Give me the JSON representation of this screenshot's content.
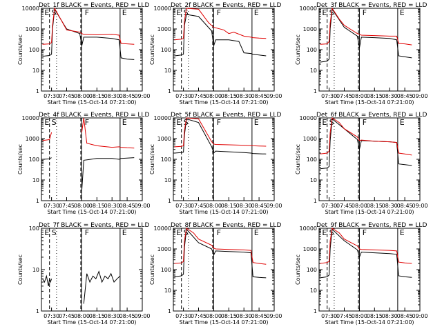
{
  "chart_data": [
    {
      "type": "line",
      "title": "Det_1f BLACK = Events, RED = LLD",
      "xlabel": "Start Time (15-Oct-14 07:21:00)",
      "ylabel": "Counts/sec",
      "yscale": "log",
      "ylim": [
        1,
        10000
      ],
      "xlim": [
        "07:20",
        "09:00"
      ],
      "x_ticks": [
        "07:30",
        "07:45",
        "08:00",
        "08:15",
        "08:30",
        "08:45",
        "09:00"
      ],
      "y_ticks": [
        "1",
        "10",
        "100",
        "1000",
        "10000"
      ],
      "segment_labels": [
        "E",
        "S",
        "F",
        "E"
      ],
      "series": [
        {
          "name": "Events",
          "color": "#000000",
          "x": [
            "07:21",
            "07:28",
            "07:30",
            "07:31",
            "07:33",
            "07:45",
            "07:58",
            "08:00",
            "08:02",
            "08:15",
            "08:30",
            "08:37",
            "08:39",
            "08:45",
            "08:52"
          ],
          "values": [
            48,
            52,
            60,
            1000,
            9000,
            1000,
            600,
            150,
            400,
            400,
            350,
            300,
            40,
            35,
            33
          ]
        },
        {
          "name": "LLD",
          "color": "#e00000",
          "x": [
            "07:21",
            "07:28",
            "07:30",
            "07:31",
            "07:33",
            "07:40",
            "07:45",
            "07:58",
            "08:00",
            "08:02",
            "08:15",
            "08:30",
            "08:37",
            "08:39",
            "08:45",
            "08:52"
          ],
          "values": [
            180,
            190,
            220,
            1500,
            12000,
            2500,
            900,
            700,
            600,
            550,
            520,
            550,
            500,
            200,
            190,
            180
          ]
        }
      ]
    },
    {
      "type": "line",
      "title": "Det_2f BLACK = Events, RED = LLD",
      "xlabel": "Start Time (15-Oct-14 07:21:00)",
      "ylabel": "Counts/sec",
      "yscale": "log",
      "ylim": [
        1,
        10000
      ],
      "xlim": [
        "07:20",
        "09:00"
      ],
      "x_ticks": [
        "07:30",
        "07:45",
        "08:00",
        "08:15",
        "08:30",
        "08:45",
        "09:00"
      ],
      "y_ticks": [
        "1",
        "10",
        "100",
        "1000",
        "10000"
      ],
      "segment_labels": [
        "E",
        "S",
        "F",
        "E"
      ],
      "series": [
        {
          "name": "Events",
          "color": "#000000",
          "x": [
            "07:21",
            "07:28",
            "07:30",
            "07:31",
            "07:33",
            "07:45",
            "07:58",
            "08:00",
            "08:02",
            "08:15",
            "08:25",
            "08:30",
            "08:37",
            "08:39",
            "08:45",
            "08:52"
          ],
          "values": [
            50,
            55,
            60,
            1500,
            5000,
            4000,
            800,
            150,
            300,
            300,
            250,
            70,
            65,
            60,
            55,
            50
          ]
        },
        {
          "name": "LLD",
          "color": "#e00000",
          "x": [
            "07:21",
            "07:28",
            "07:30",
            "07:31",
            "07:33",
            "07:45",
            "07:55",
            "08:00",
            "08:10",
            "08:15",
            "08:20",
            "08:30",
            "08:37",
            "08:39",
            "08:45",
            "08:52"
          ],
          "values": [
            300,
            320,
            350,
            2500,
            11000,
            9000,
            2000,
            1200,
            900,
            600,
            700,
            450,
            400,
            380,
            360,
            350
          ]
        }
      ]
    },
    {
      "type": "line",
      "title": "Det_3f BLACK = Events, RED = LLD",
      "xlabel": "Start Time (15-Oct-14 07:21:00)",
      "ylabel": "Counts/sec",
      "yscale": "log",
      "ylim": [
        1,
        10000
      ],
      "xlim": [
        "07:20",
        "09:00"
      ],
      "x_ticks": [
        "07:30",
        "07:45",
        "08:00",
        "08:15",
        "08:30",
        "08:45",
        "09:00"
      ],
      "y_ticks": [
        "1",
        "10",
        "100",
        "1000",
        "10000"
      ],
      "segment_labels": [
        "E",
        "S",
        "F",
        "E"
      ],
      "series": [
        {
          "name": "Events",
          "color": "#000000",
          "x": [
            "07:21",
            "07:28",
            "07:30",
            "07:31",
            "07:33",
            "07:45",
            "07:58",
            "08:00",
            "08:02",
            "08:15",
            "08:30",
            "08:37",
            "08:39",
            "08:45",
            "08:52"
          ],
          "values": [
            25,
            28,
            35,
            1000,
            9000,
            1200,
            450,
            120,
            400,
            380,
            350,
            300,
            50,
            45,
            40
          ]
        },
        {
          "name": "LLD",
          "color": "#e00000",
          "x": [
            "07:21",
            "07:28",
            "07:30",
            "07:31",
            "07:33",
            "07:40",
            "07:45",
            "07:58",
            "08:00",
            "08:02",
            "08:15",
            "08:30",
            "08:37",
            "08:39",
            "08:45",
            "08:52"
          ],
          "values": [
            180,
            190,
            250,
            2000,
            11000,
            3000,
            1500,
            600,
            550,
            500,
            480,
            450,
            450,
            200,
            190,
            170
          ]
        }
      ]
    },
    {
      "type": "line",
      "title": "Det_4f BLACK = Events, RED = LLD",
      "xlabel": "Start Time (15-Oct-14 07:21:00)",
      "ylabel": "Counts/sec",
      "yscale": "log",
      "ylim": [
        1,
        10000
      ],
      "xlim": [
        "07:20",
        "09:00"
      ],
      "x_ticks": [
        "07:30",
        "07:45",
        "08:00",
        "08:15",
        "08:30",
        "08:45",
        "09:00"
      ],
      "y_ticks": [
        "1",
        "10",
        "100",
        "1000",
        "10000"
      ],
      "segment_labels": [
        "E",
        "S",
        "F",
        "E"
      ],
      "series": [
        {
          "name": "Events",
          "color": "#000000",
          "x": [
            "07:21",
            "07:28",
            "07:30",
            "07:58",
            "08:00",
            "08:02",
            "08:15",
            "08:30",
            "08:37",
            "08:39",
            "08:45",
            "08:52"
          ],
          "values": [
            100,
            105,
            120,
            null,
            3,
            90,
            110,
            110,
            100,
            110,
            115,
            120
          ]
        },
        {
          "name": "LLD",
          "color": "#e00000",
          "x": [
            "07:21",
            "07:28",
            "07:30",
            "07:58",
            "08:00",
            "08:02",
            "08:05",
            "08:15",
            "08:30",
            "08:37",
            "08:39",
            "08:45",
            "08:52"
          ],
          "values": [
            800,
            900,
            2000,
            null,
            2000,
            12000,
            600,
            450,
            380,
            400,
            380,
            360,
            350
          ]
        }
      ]
    },
    {
      "type": "line",
      "title": "Det_5f BLACK = Events, RED = LLD",
      "xlabel": "Start Time (15-Oct-14 07:21:00)",
      "ylabel": "Counts/sec",
      "yscale": "log",
      "ylim": [
        1,
        10000
      ],
      "xlim": [
        "07:20",
        "09:00"
      ],
      "x_ticks": [
        "07:30",
        "07:45",
        "08:00",
        "08:15",
        "08:30",
        "08:45",
        "09:00"
      ],
      "y_ticks": [
        "1",
        "10",
        "100",
        "1000",
        "10000"
      ],
      "segment_labels": [
        "E",
        "S",
        "F",
        "E"
      ],
      "series": [
        {
          "name": "Events",
          "color": "#000000",
          "x": [
            "07:21",
            "07:28",
            "07:30",
            "07:31",
            "07:33",
            "07:45",
            "07:58",
            "08:00",
            "08:02",
            "08:15",
            "08:30",
            "08:37",
            "08:39",
            "08:45",
            "08:52"
          ],
          "values": [
            200,
            210,
            220,
            1500,
            9000,
            6000,
            400,
            200,
            250,
            230,
            210,
            200,
            190,
            185,
            180
          ]
        },
        {
          "name": "LLD",
          "color": "#e00000",
          "x": [
            "07:21",
            "07:28",
            "07:30",
            "07:31",
            "07:33",
            "07:45",
            "07:58",
            "08:00",
            "08:02",
            "08:15",
            "08:30",
            "08:37",
            "08:39",
            "08:45",
            "08:52"
          ],
          "values": [
            400,
            420,
            450,
            2500,
            12000,
            9000,
            700,
            550,
            520,
            500,
            480,
            460,
            450,
            440,
            430
          ]
        }
      ]
    },
    {
      "type": "line",
      "title": "Det_6f BLACK = Events, RED = LLD",
      "xlabel": "Start Time (15-Oct-14 07:21:00)",
      "ylabel": "Counts/sec",
      "yscale": "log",
      "ylim": [
        1,
        10000
      ],
      "xlim": [
        "07:20",
        "09:00"
      ],
      "x_ticks": [
        "07:30",
        "07:45",
        "08:00",
        "08:15",
        "08:30",
        "08:45",
        "09:00"
      ],
      "y_ticks": [
        "1",
        "10",
        "100",
        "1000",
        "10000"
      ],
      "segment_labels": [
        "E",
        "S",
        "F",
        "E"
      ],
      "series": [
        {
          "name": "Events",
          "color": "#000000",
          "x": [
            "07:21",
            "07:28",
            "07:30",
            "07:31",
            "07:33",
            "07:45",
            "07:58",
            "08:00",
            "08:02",
            "08:15",
            "08:30",
            "08:37",
            "08:39",
            "08:45",
            "08:52"
          ],
          "values": [
            35,
            38,
            45,
            800,
            9000,
            3000,
            900,
            300,
            800,
            750,
            700,
            650,
            60,
            55,
            50
          ]
        },
        {
          "name": "LLD",
          "color": "#e00000",
          "x": [
            "07:21",
            "07:28",
            "07:30",
            "07:31",
            "07:33",
            "07:40",
            "07:45",
            "07:58",
            "08:00",
            "08:02",
            "08:15",
            "08:30",
            "08:37",
            "08:39",
            "08:45",
            "08:52"
          ],
          "values": [
            180,
            200,
            250,
            2000,
            11000,
            6000,
            3000,
            1200,
            800,
            850,
            750,
            700,
            650,
            200,
            180,
            160
          ]
        }
      ]
    },
    {
      "type": "line",
      "title": "Det_7f BLACK = Events, RED = LLD",
      "xlabel": "Start Time (15-Oct-14 07:21:00)",
      "ylabel": "Counts/sec",
      "yscale": "log",
      "ylim": [
        1,
        100
      ],
      "xlim": [
        "07:20",
        "09:00"
      ],
      "x_ticks": [
        "07:30",
        "07:45",
        "08:00",
        "08:15",
        "08:30",
        "08:45",
        "09:00"
      ],
      "y_ticks": [
        "1",
        "10",
        "100"
      ],
      "segment_labels": [
        "E",
        "S",
        "F",
        "E"
      ],
      "series": [
        {
          "name": "Events",
          "color": "#000000",
          "x": [
            "07:21",
            "07:23",
            "07:25",
            "07:27",
            "07:28",
            "07:29",
            "07:30",
            "08:00",
            "08:02",
            "08:05",
            "08:08",
            "08:11",
            "08:14",
            "08:17",
            "08:20",
            "08:23",
            "08:26",
            "08:29",
            "08:32",
            "08:35",
            "08:38"
          ],
          "values": [
            6,
            5,
            7,
            4,
            6,
            5,
            6,
            null,
            1.5,
            8,
            5,
            7,
            6,
            9,
            5,
            7,
            6,
            8,
            5,
            6,
            7
          ]
        }
      ]
    },
    {
      "type": "line",
      "title": "Det_8f BLACK = Events, RED = LLD",
      "xlabel": "Start Time (15-Oct-14 07:21:00)",
      "ylabel": "Counts/sec",
      "yscale": "log",
      "ylim": [
        1,
        10000
      ],
      "xlim": [
        "07:20",
        "09:00"
      ],
      "x_ticks": [
        "07:30",
        "07:45",
        "08:00",
        "08:15",
        "08:30",
        "08:45",
        "09:00"
      ],
      "y_ticks": [
        "1",
        "10",
        "100",
        "1000",
        "10000"
      ],
      "segment_labels": [
        "E",
        "S",
        "F",
        "E"
      ],
      "series": [
        {
          "name": "Events",
          "color": "#000000",
          "x": [
            "07:21",
            "07:28",
            "07:30",
            "07:31",
            "07:33",
            "07:45",
            "07:58",
            "08:00",
            "08:02",
            "08:15",
            "08:30",
            "08:37",
            "08:39",
            "08:45",
            "08:52"
          ],
          "values": [
            45,
            50,
            60,
            1200,
            9000,
            2000,
            1000,
            500,
            800,
            750,
            700,
            650,
            45,
            42,
            40
          ]
        },
        {
          "name": "LLD",
          "color": "#e00000",
          "x": [
            "07:21",
            "07:28",
            "07:30",
            "07:31",
            "07:33",
            "07:40",
            "07:45",
            "07:58",
            "08:00",
            "08:02",
            "08:15",
            "08:30",
            "08:37",
            "08:39",
            "08:45",
            "08:52"
          ],
          "values": [
            200,
            210,
            250,
            2500,
            12000,
            6000,
            3000,
            1500,
            1100,
            1000,
            950,
            900,
            850,
            220,
            200,
            180
          ]
        }
      ]
    },
    {
      "type": "line",
      "title": "Det_9f BLACK = Events, RED = LLD",
      "xlabel": "Start Time (15-Oct-14 07:21:00)",
      "ylabel": "Counts/sec",
      "yscale": "log",
      "ylim": [
        1,
        10000
      ],
      "xlim": [
        "07:20",
        "09:00"
      ],
      "x_ticks": [
        "07:30",
        "07:45",
        "08:00",
        "08:15",
        "08:30",
        "08:45",
        "09:00"
      ],
      "y_ticks": [
        "1",
        "10",
        "100",
        "1000",
        "10000"
      ],
      "segment_labels": [
        "E",
        "S",
        "F",
        "E"
      ],
      "series": [
        {
          "name": "Events",
          "color": "#000000",
          "x": [
            "07:21",
            "07:28",
            "07:30",
            "07:31",
            "07:33",
            "07:45",
            "07:58",
            "08:00",
            "08:02",
            "08:15",
            "08:30",
            "08:37",
            "08:39",
            "08:45",
            "08:52"
          ],
          "values": [
            40,
            45,
            55,
            1000,
            9000,
            2500,
            900,
            400,
            700,
            650,
            600,
            550,
            50,
            45,
            42
          ]
        },
        {
          "name": "LLD",
          "color": "#e00000",
          "x": [
            "07:21",
            "07:28",
            "07:30",
            "07:31",
            "07:33",
            "07:40",
            "07:45",
            "07:58",
            "08:00",
            "08:02",
            "08:15",
            "08:30",
            "08:37",
            "08:39",
            "08:45",
            "08:52"
          ],
          "values": [
            200,
            220,
            250,
            2500,
            12000,
            6000,
            3000,
            1400,
            1000,
            950,
            900,
            850,
            800,
            230,
            210,
            200
          ]
        }
      ]
    }
  ]
}
